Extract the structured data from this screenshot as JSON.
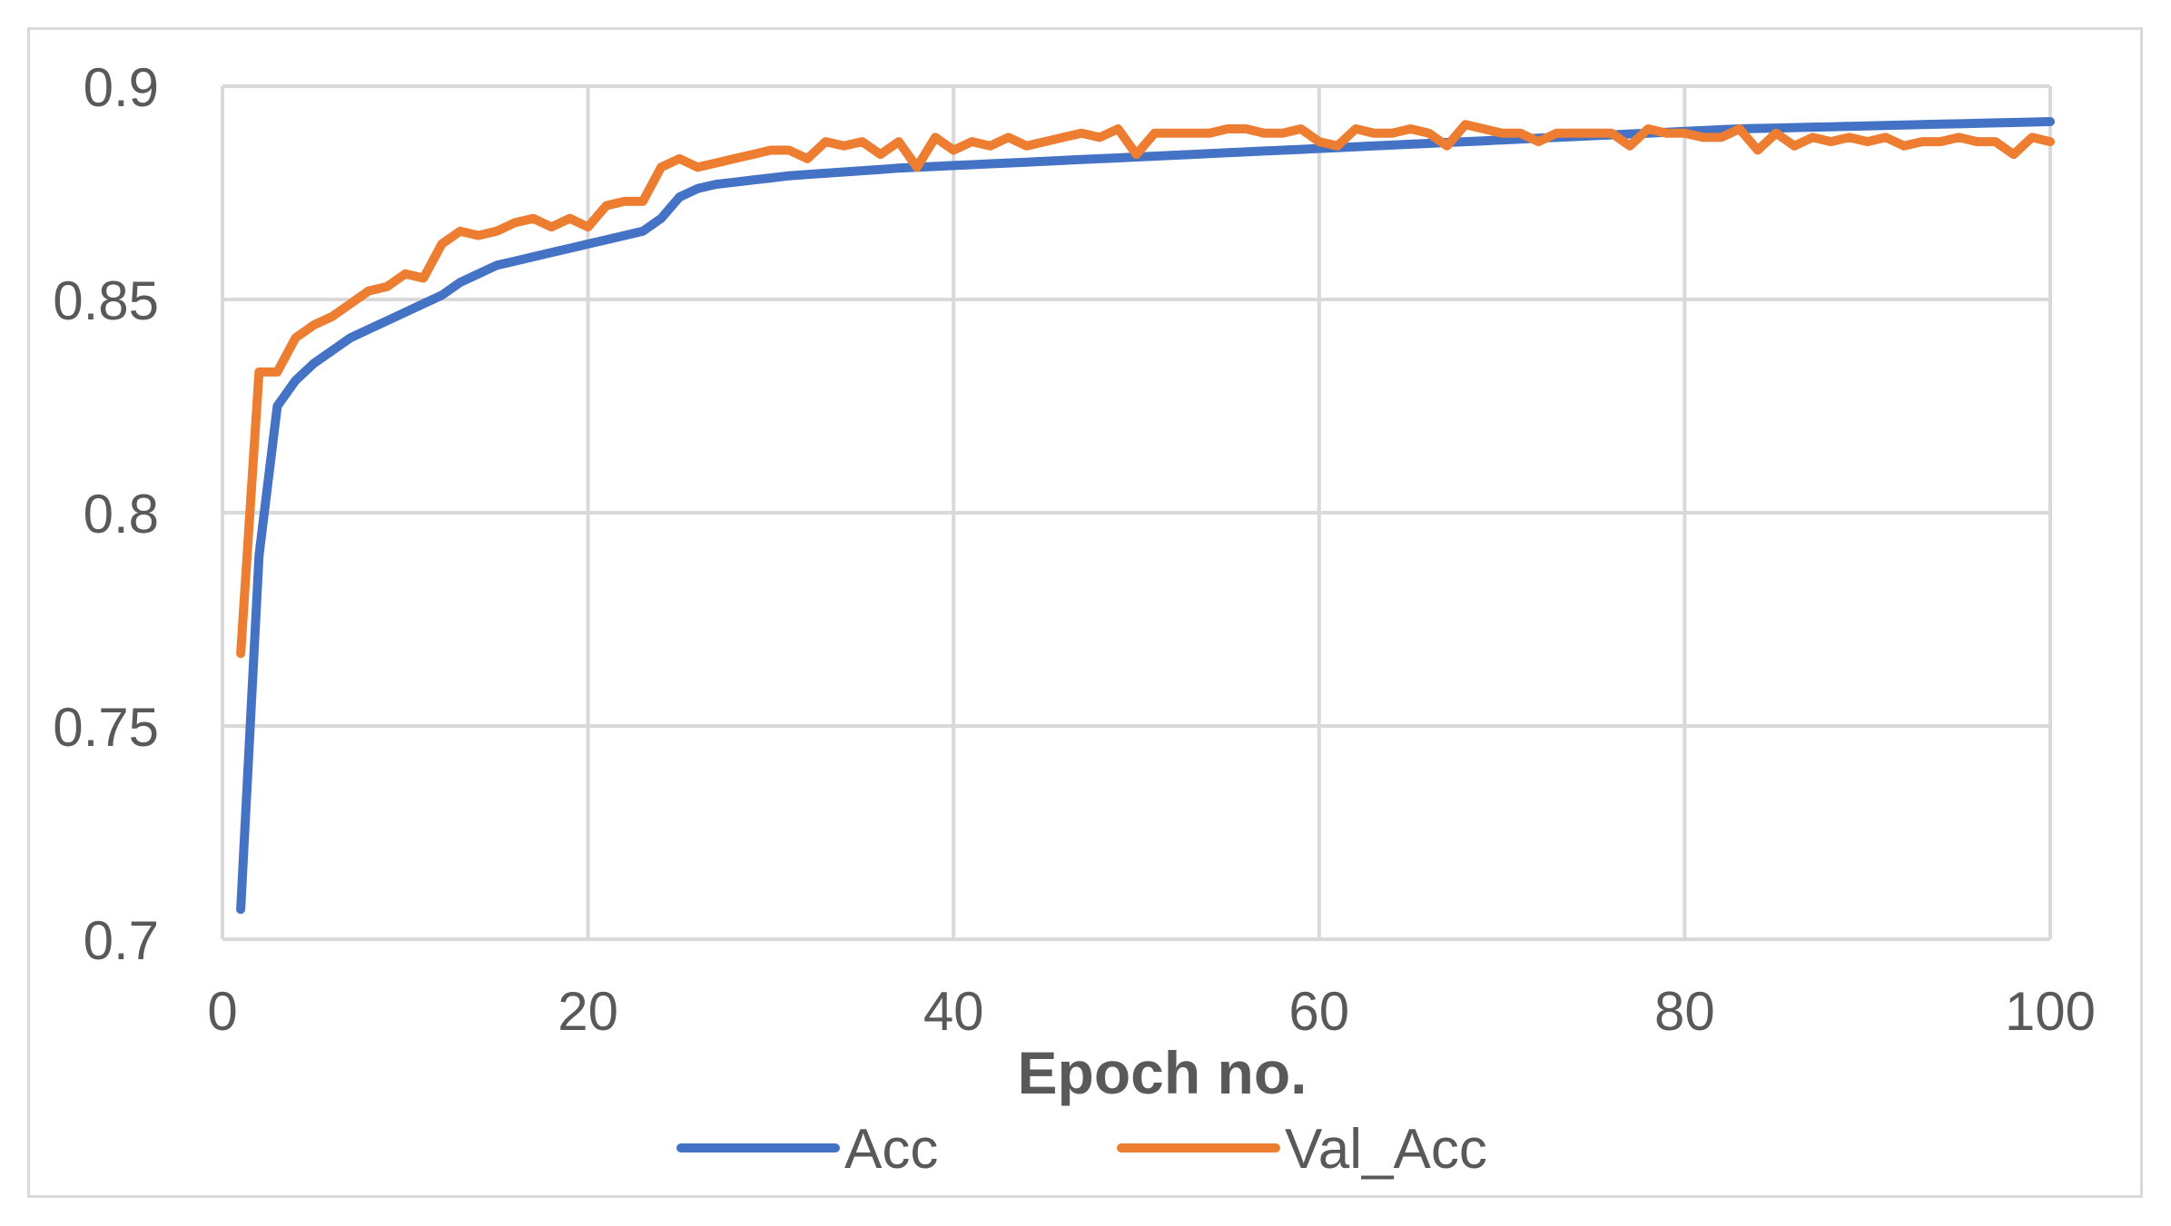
{
  "chart_data": {
    "type": "line",
    "title": "",
    "xlabel": "Epoch no.",
    "ylabel": "",
    "xlim": [
      0,
      100
    ],
    "ylim": [
      0.7,
      0.9
    ],
    "x_ticks": [
      "0",
      "20",
      "40",
      "60",
      "80",
      "100"
    ],
    "y_ticks": [
      "0.7",
      "0.75",
      "0.8",
      "0.85",
      "0.9"
    ],
    "grid": true,
    "legend_position": "bottom",
    "series": [
      {
        "name": "Acc",
        "color": "#4472c4",
        "x": [
          1,
          2,
          3,
          4,
          5,
          6,
          7,
          8,
          9,
          10,
          11,
          12,
          13,
          14,
          15,
          16,
          17,
          18,
          19,
          20,
          21,
          22,
          23,
          24,
          25,
          26,
          27,
          28,
          29,
          30,
          31,
          32,
          33,
          34,
          35,
          36,
          37,
          38,
          39,
          40,
          41,
          42,
          43,
          44,
          45,
          46,
          47,
          48,
          49,
          50,
          51,
          52,
          53,
          54,
          55,
          56,
          57,
          58,
          59,
          60,
          61,
          62,
          63,
          64,
          65,
          66,
          67,
          68,
          69,
          70,
          71,
          72,
          73,
          74,
          75,
          76,
          77,
          78,
          79,
          80,
          81,
          82,
          83,
          84,
          85,
          86,
          87,
          88,
          89,
          90,
          91,
          92,
          93,
          94,
          95,
          96,
          97,
          98,
          99,
          100
        ],
        "values": [
          0.707,
          0.79,
          0.825,
          0.831,
          0.835,
          0.838,
          0.841,
          0.843,
          0.845,
          0.847,
          0.849,
          0.851,
          0.854,
          0.856,
          0.858,
          0.859,
          0.86,
          0.861,
          0.862,
          0.863,
          0.864,
          0.865,
          0.866,
          0.869,
          0.874,
          0.876,
          0.877,
          0.8775,
          0.878,
          0.8785,
          0.879,
          0.8793,
          0.8796,
          0.8799,
          0.8802,
          0.8805,
          0.8808,
          0.881,
          0.8812,
          0.8814,
          0.8816,
          0.8818,
          0.882,
          0.8822,
          0.8824,
          0.8826,
          0.8828,
          0.883,
          0.8832,
          0.8834,
          0.8836,
          0.8838,
          0.884,
          0.8842,
          0.8844,
          0.8846,
          0.8848,
          0.885,
          0.8852,
          0.8854,
          0.8856,
          0.8858,
          0.886,
          0.8862,
          0.8864,
          0.8866,
          0.8868,
          0.887,
          0.8872,
          0.8874,
          0.8876,
          0.8878,
          0.888,
          0.8882,
          0.8884,
          0.8886,
          0.8888,
          0.889,
          0.8892,
          0.8894,
          0.8896,
          0.8898,
          0.89,
          0.8901,
          0.8902,
          0.8903,
          0.8904,
          0.8905,
          0.8906,
          0.8907,
          0.8908,
          0.8909,
          0.891,
          0.8911,
          0.8912,
          0.8913,
          0.8914,
          0.8915,
          0.8916,
          0.8917
        ]
      },
      {
        "name": "Val_Acc",
        "color": "#ed7d31",
        "x": [
          1,
          2,
          3,
          4,
          5,
          6,
          7,
          8,
          9,
          10,
          11,
          12,
          13,
          14,
          15,
          16,
          17,
          18,
          19,
          20,
          21,
          22,
          23,
          24,
          25,
          26,
          27,
          28,
          29,
          30,
          31,
          32,
          33,
          34,
          35,
          36,
          37,
          38,
          39,
          40,
          41,
          42,
          43,
          44,
          45,
          46,
          47,
          48,
          49,
          50,
          51,
          52,
          53,
          54,
          55,
          56,
          57,
          58,
          59,
          60,
          61,
          62,
          63,
          64,
          65,
          66,
          67,
          68,
          69,
          70,
          71,
          72,
          73,
          74,
          75,
          76,
          77,
          78,
          79,
          80,
          81,
          82,
          83,
          84,
          85,
          86,
          87,
          88,
          89,
          90,
          91,
          92,
          93,
          94,
          95,
          96,
          97,
          98,
          99,
          100
        ],
        "values": [
          0.767,
          0.833,
          0.833,
          0.841,
          0.844,
          0.846,
          0.849,
          0.852,
          0.853,
          0.856,
          0.855,
          0.863,
          0.866,
          0.865,
          0.866,
          0.868,
          0.869,
          0.867,
          0.869,
          0.867,
          0.872,
          0.873,
          0.873,
          0.881,
          0.883,
          0.881,
          0.882,
          0.883,
          0.884,
          0.885,
          0.885,
          0.883,
          0.887,
          0.886,
          0.887,
          0.884,
          0.887,
          0.881,
          0.888,
          0.885,
          0.887,
          0.886,
          0.888,
          0.886,
          0.887,
          0.888,
          0.889,
          0.888,
          0.89,
          0.884,
          0.889,
          0.889,
          0.889,
          0.889,
          0.89,
          0.89,
          0.889,
          0.889,
          0.89,
          0.887,
          0.886,
          0.89,
          0.889,
          0.889,
          0.89,
          0.889,
          0.886,
          0.891,
          0.89,
          0.889,
          0.889,
          0.887,
          0.889,
          0.889,
          0.889,
          0.889,
          0.886,
          0.89,
          0.889,
          0.889,
          0.888,
          0.888,
          0.89,
          0.885,
          0.889,
          0.886,
          0.888,
          0.887,
          0.888,
          0.887,
          0.888,
          0.886,
          0.887,
          0.887,
          0.888,
          0.887,
          0.887,
          0.884,
          0.888,
          0.887
        ]
      }
    ]
  }
}
